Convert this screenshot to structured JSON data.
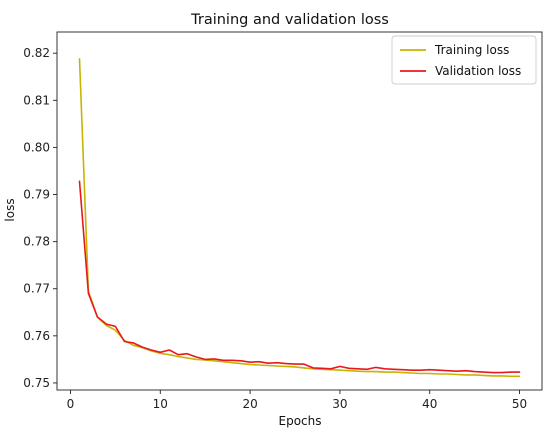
{
  "chart_data": {
    "type": "line",
    "title": "Training and validation loss",
    "xlabel": "Epochs",
    "ylabel": "loss",
    "xlim": [
      -1.5,
      52.5
    ],
    "ylim": [
      0.7485,
      0.8245
    ],
    "xticks": [
      0,
      10,
      20,
      30,
      40,
      50
    ],
    "yticks": [
      0.75,
      0.76,
      0.77,
      0.78,
      0.79,
      0.8,
      0.81,
      0.82
    ],
    "ytick_labels": [
      "0.75",
      "0.76",
      "0.77",
      "0.78",
      "0.79",
      "0.80",
      "0.81",
      "0.82"
    ],
    "grid": false,
    "legend_position": "top-right",
    "x": [
      1,
      2,
      3,
      4,
      5,
      6,
      7,
      8,
      9,
      10,
      11,
      12,
      13,
      14,
      15,
      16,
      17,
      18,
      19,
      20,
      21,
      22,
      23,
      24,
      25,
      26,
      27,
      28,
      29,
      30,
      31,
      32,
      33,
      34,
      35,
      36,
      37,
      38,
      39,
      40,
      41,
      42,
      43,
      44,
      45,
      46,
      47,
      48,
      49,
      50
    ],
    "series": [
      {
        "name": "Training loss",
        "color": "#c8b400",
        "values": [
          0.8188,
          0.7695,
          0.764,
          0.7622,
          0.7612,
          0.759,
          0.758,
          0.7575,
          0.7568,
          0.7563,
          0.756,
          0.7556,
          0.7553,
          0.755,
          0.7549,
          0.7547,
          0.7545,
          0.7543,
          0.7541,
          0.7539,
          0.7538,
          0.7537,
          0.7536,
          0.7535,
          0.7534,
          0.7532,
          0.753,
          0.7529,
          0.7528,
          0.7527,
          0.7526,
          0.7525,
          0.7524,
          0.7524,
          0.7523,
          0.7523,
          0.7522,
          0.7521,
          0.752,
          0.752,
          0.7519,
          0.7519,
          0.7518,
          0.7517,
          0.7517,
          0.7516,
          0.7515,
          0.7515,
          0.7514,
          0.7514
        ]
      },
      {
        "name": "Validation loss",
        "color": "#e8191e",
        "values": [
          0.7928,
          0.769,
          0.764,
          0.7625,
          0.762,
          0.7588,
          0.7585,
          0.7576,
          0.757,
          0.7565,
          0.757,
          0.756,
          0.7562,
          0.7555,
          0.755,
          0.7551,
          0.7548,
          0.7548,
          0.7547,
          0.7544,
          0.7545,
          0.7542,
          0.7543,
          0.7541,
          0.754,
          0.754,
          0.7532,
          0.7531,
          0.753,
          0.7535,
          0.7531,
          0.753,
          0.7529,
          0.7533,
          0.753,
          0.7529,
          0.7528,
          0.7527,
          0.7527,
          0.7528,
          0.7527,
          0.7526,
          0.7525,
          0.7526,
          0.7524,
          0.7523,
          0.7522,
          0.7522,
          0.7523,
          0.7523
        ]
      }
    ]
  }
}
